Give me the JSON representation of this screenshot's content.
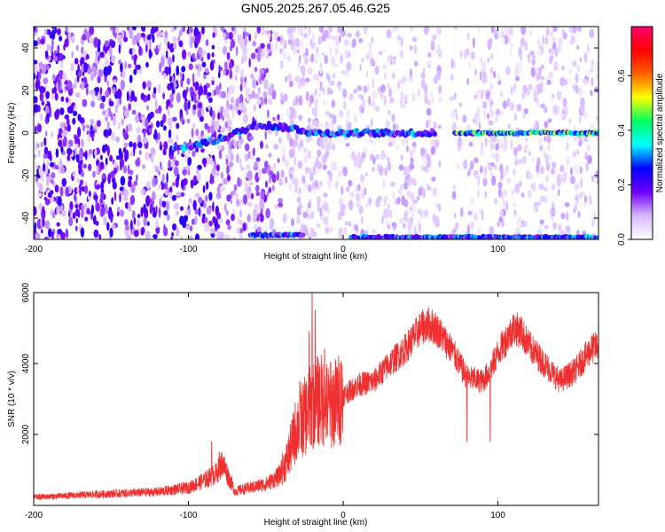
{
  "title": "GN05.2025.267.05.46.G25",
  "chart_data": [
    {
      "type": "heatmap",
      "xlabel": "Height of straight line (km)",
      "ylabel": "Frequency (Hz)",
      "xlim": [
        -200,
        165
      ],
      "ylim": [
        -50,
        50
      ],
      "x_ticks": [
        -200,
        -100,
        0,
        100
      ],
      "y_ticks": [
        -40,
        -20,
        0,
        20,
        40
      ],
      "colorbar": {
        "label": "Normalized spectral amplitude",
        "range": [
          0,
          0.78
        ],
        "ticks": [
          0.0,
          0.2,
          0.4,
          0.6
        ],
        "colors": [
          "#ffffff",
          "#d8b8ff",
          "#7000ff",
          "#0000ff",
          "#00ffff",
          "#00ff60",
          "#ffff00",
          "#ff6000",
          "#ff0000",
          "#ff0070"
        ]
      },
      "features": [
        {
          "name": "drift",
          "points": [
            [
              -110,
              -8
            ],
            [
              -80,
              -3
            ],
            [
              -55,
              4
            ],
            [
              -30,
              2
            ],
            [
              -20,
              0
            ],
            [
              0,
              0
            ],
            [
              60,
              0
            ]
          ],
          "amplitude": 0.25
        },
        {
          "name": "carrier",
          "x_start": 72,
          "x_end": 165,
          "y": 0,
          "amplitude": 0.3
        },
        {
          "name": "gap",
          "x_start": 63,
          "x_end": 70
        },
        {
          "name": "alias",
          "x_start": -60,
          "x_end": -25,
          "y": -48,
          "amplitude": 0.2
        },
        {
          "name": "alias",
          "x_start": 5,
          "x_end": 165,
          "y": -49,
          "amplitude": 0.2
        }
      ]
    },
    {
      "type": "line",
      "xlabel": "Height of straight line (km)",
      "ylabel": "SNR (10 * v/v)",
      "xlim": [
        -200,
        165
      ],
      "ylim": [
        0,
        6000
      ],
      "x_ticks": [
        -200,
        -100,
        0,
        100
      ],
      "y_ticks": [
        2000,
        4000,
        6000
      ],
      "color": "#f03030",
      "x": [
        -200,
        -150,
        -120,
        -100,
        -90,
        -82,
        -78,
        -74,
        -70,
        -60,
        -50,
        -42,
        -36,
        -30,
        -25,
        -20,
        -15,
        -10,
        -5,
        0,
        10,
        20,
        30,
        40,
        50,
        55,
        60,
        70,
        80,
        90,
        95,
        100,
        110,
        115,
        120,
        130,
        140,
        150,
        160,
        165
      ],
      "y": [
        230,
        330,
        380,
        500,
        700,
        900,
        1200,
        800,
        400,
        500,
        600,
        800,
        1300,
        2200,
        2500,
        2800,
        3000,
        2800,
        2900,
        3100,
        3400,
        3500,
        4000,
        4400,
        5000,
        5100,
        5000,
        4400,
        3600,
        3500,
        3800,
        4300,
        5000,
        4900,
        4500,
        4000,
        3500,
        3800,
        4400,
        4500
      ],
      "spikes": [
        [
          -85,
          1800
        ],
        [
          -80,
          1500
        ],
        [
          -28,
          3500
        ],
        [
          -22,
          4900
        ],
        [
          -20,
          6000
        ],
        [
          -18,
          5500
        ],
        [
          -12,
          4400
        ],
        [
          -8,
          4000
        ],
        [
          80,
          1800
        ],
        [
          95,
          1800
        ]
      ]
    }
  ]
}
